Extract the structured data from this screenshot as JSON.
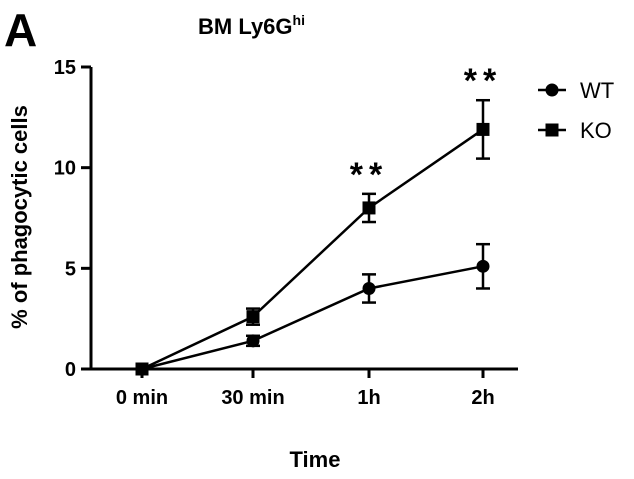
{
  "panel_letter": "A",
  "chart_data": {
    "type": "line",
    "title": "BM Ly6G",
    "title_superscript": "hi",
    "xlabel": "Time",
    "ylabel": "% of phagocytic cells",
    "categories": [
      "0 min",
      "30 min",
      "1h",
      "2h"
    ],
    "ylim": [
      0,
      15
    ],
    "yticks": [
      0,
      5,
      10,
      15
    ],
    "grid": false,
    "legend_position": "top-right",
    "series": [
      {
        "name": "WT",
        "marker": "circle",
        "values": [
          0,
          1.4,
          4.0,
          5.1
        ],
        "errors": [
          0.1,
          0.25,
          0.7,
          1.1
        ]
      },
      {
        "name": "KO",
        "marker": "square",
        "values": [
          0,
          2.6,
          8.0,
          11.9
        ],
        "errors": [
          0.1,
          0.4,
          0.7,
          1.45
        ]
      }
    ],
    "annotations": [
      {
        "category": "1h",
        "text": "**"
      },
      {
        "category": "2h",
        "text": "**"
      }
    ]
  }
}
